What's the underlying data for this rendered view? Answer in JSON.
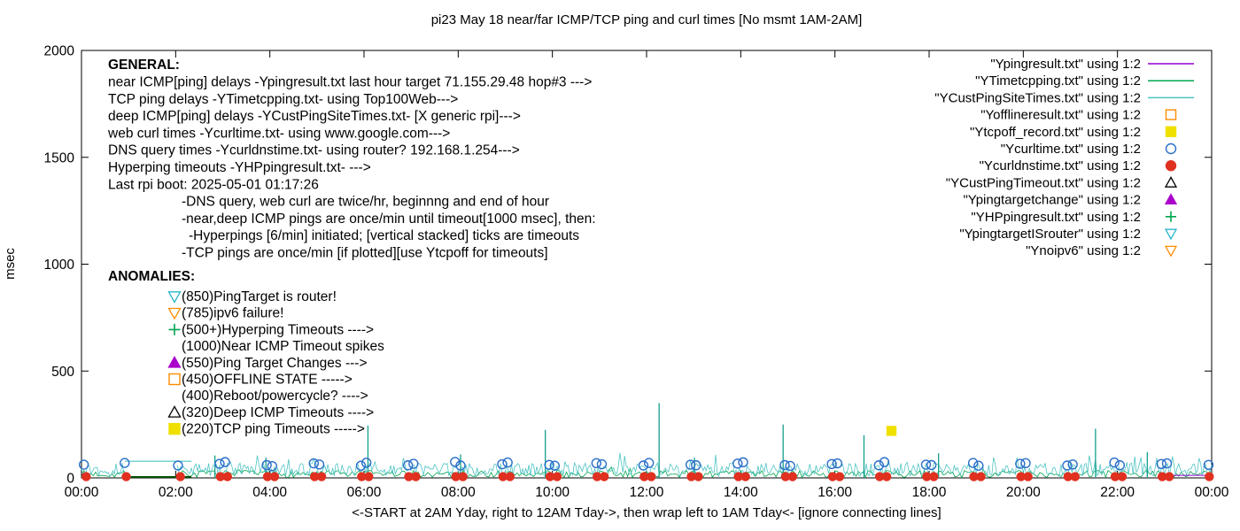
{
  "chart_data": {
    "type": "line",
    "title": "pi23 May 18  near/far ICMP/TCP ping and curl times [No msmt 1AM-2AM]",
    "xlabel": "<-START at 2AM Yday, right to 12AM Tday->, then wrap left to 1AM Tday<- [ignore connecting lines]",
    "ylabel": "msec",
    "ylim": [
      0,
      2000
    ],
    "yticks": [
      0,
      500,
      1000,
      1500,
      2000
    ],
    "x_range_minutes": [
      0,
      1440
    ],
    "xticks_minutes": [
      0,
      120,
      240,
      360,
      480,
      600,
      720,
      840,
      960,
      1080,
      1200,
      1320,
      1440
    ],
    "xtick_labels": [
      "00:00",
      "02:00",
      "04:00",
      "06:00",
      "08:00",
      "10:00",
      "12:00",
      "14:00",
      "16:00",
      "18:00",
      "20:00",
      "22:00",
      "00:00"
    ],
    "no_measurement_gap_minutes": [
      60,
      122
    ],
    "legend_position": "top-right",
    "grid": false,
    "legend": [
      {
        "label": "\"Ypingresult.txt\" using 1:2",
        "sample": "line",
        "color": "#9400d3",
        "fill": false
      },
      {
        "label": "\"YTimetcpping.txt\" using 1:2",
        "sample": "line",
        "color": "#00a550",
        "fill": false
      },
      {
        "label": "\"YCustPingSiteTimes.txt\" using 1:2",
        "sample": "line",
        "color": "#4fc3c3",
        "fill": false
      },
      {
        "label": "\"Yofflineresult.txt\" using 1:2",
        "sample": "square",
        "color": "#ff8c00",
        "fill": false
      },
      {
        "label": "\"Ytcpoff_record.txt\" using 1:2",
        "sample": "square",
        "color": "#f0e000",
        "fill": true
      },
      {
        "label": "\"Ycurltime.txt\" using 1:2",
        "sample": "circle",
        "color": "#2a6fc9",
        "fill": false
      },
      {
        "label": "\"Ycurldnstime.txt\" using 1:2",
        "sample": "circle",
        "color": "#e03020",
        "fill": true
      },
      {
        "label": "\"YCustPingTimeout.txt\" using 1:2",
        "sample": "tri-up",
        "color": "#000000",
        "fill": false
      },
      {
        "label": "\"Ypingtargetchange\" using 1:2",
        "sample": "tri-up",
        "color": "#aa00cc",
        "fill": true
      },
      {
        "label": "\"YHPpingresult.txt\" using 1:2",
        "sample": "plus",
        "color": "#00a550",
        "fill": false
      },
      {
        "label": "\"YpingtargetISrouter\" using 1:2",
        "sample": "tri-down",
        "color": "#29b6c8",
        "fill": false
      },
      {
        "label": "\"Ynoipv6\" using 1:2",
        "sample": "tri-down",
        "color": "#ff8c00",
        "fill": false
      }
    ],
    "annotations": {
      "general": {
        "heading": "GENERAL:",
        "lines": [
          {
            "text": "near ICMP[ping] delays -Ypingresult.txt last hour target 71.155.29.48 hop#3 --->",
            "indent": 0
          },
          {
            "text": "TCP ping delays -YTimetcpping.txt- using Top100Web--->",
            "indent": 0
          },
          {
            "text": "deep ICMP[ping] delays -YCustPingSiteTimes.txt- [X generic rpi]--->",
            "indent": 0
          },
          {
            "text": "web curl times -Ycurltime.txt- using www.google.com--->",
            "indent": 0
          },
          {
            "text": "DNS query times -Ycurldnstime.txt- using router? 192.168.1.254--->",
            "indent": 0
          },
          {
            "text": "Hyperping timeouts -YHPpingresult.txt- --->",
            "indent": 0
          },
          {
            "text": "Last rpi boot: 2025-05-01 01:17:26",
            "indent": 0
          },
          {
            "text": "-DNS query, web curl are twice/hr, beginnng and end of hour",
            "indent": 1
          },
          {
            "text": "-near,deep ICMP pings are once/min until timeout[1000 msec], then:",
            "indent": 1
          },
          {
            "text": "-Hyperpings [6/min] initiated; [vertical stacked] ticks are timeouts",
            "indent": 2
          },
          {
            "text": "-TCP pings are once/min [if plotted][use Ytcpoff for timeouts]",
            "indent": 1
          }
        ]
      },
      "anomalies": {
        "heading": "ANOMALIES:",
        "items": [
          {
            "marker": "tri-down",
            "color": "#29b6c8",
            "fill": false,
            "text": "(850)PingTarget is router!"
          },
          {
            "marker": "tri-down",
            "color": "#ff8c00",
            "fill": false,
            "text": "(785)ipv6 failure!"
          },
          {
            "marker": "plus",
            "color": "#00a550",
            "fill": false,
            "text": "(500+)Hyperping Timeouts ---->"
          },
          {
            "marker": "none",
            "color": "#000000",
            "fill": false,
            "text": "(1000)Near ICMP Timeout spikes"
          },
          {
            "marker": "tri-up",
            "color": "#aa00cc",
            "fill": true,
            "text": "(550)Ping Target Changes --->"
          },
          {
            "marker": "square",
            "color": "#ff8c00",
            "fill": false,
            "text": "(450)OFFLINE STATE ----->"
          },
          {
            "marker": "none",
            "color": "#000000",
            "fill": false,
            "text": "(400)Reboot/powercycle? ---->"
          },
          {
            "marker": "tri-up",
            "color": "#000000",
            "fill": false,
            "text": "(320)Deep ICMP Timeouts ---->"
          },
          {
            "marker": "square",
            "color": "#f0e000",
            "fill": true,
            "text": "(220)TCP ping Timeouts ----->"
          }
        ]
      }
    },
    "series": {
      "deep_icmp_noise": {
        "name": "YCustPingSiteTimes.txt",
        "color": "#4fc3c3",
        "band_msec": [
          8,
          70
        ],
        "spike_chance": 0.07,
        "spike_extra_msec": 60,
        "step_minutes": 2,
        "seed": 13
      },
      "tcp_ping_noise": {
        "name": "YTimetcpping.txt",
        "color": "#00a550",
        "band_msec": [
          2,
          35
        ],
        "spike_chance": 0.05,
        "spike_extra_msec": 25,
        "step_minutes": 3,
        "seed": 7
      },
      "near_icmp_lasthour": {
        "name": "Ypingresult.txt",
        "color": "#9400d3",
        "segment_minutes": [
          1380,
          1440
        ],
        "y_msec": 12
      },
      "hyperping_spikes": {
        "name": "YHPpingresult.txt",
        "color": "#14a08e",
        "points": [
          [
            170,
            105
          ],
          [
            235,
            95
          ],
          [
            365,
            245
          ],
          [
            483,
            110
          ],
          [
            591,
            225
          ],
          [
            736,
            350
          ],
          [
            781,
            95
          ],
          [
            894,
            250
          ],
          [
            997,
            200
          ],
          [
            1092,
            115
          ],
          [
            1292,
            230
          ],
          [
            1358,
            120
          ]
        ]
      },
      "curl_times": {
        "name": "Ycurltime.txt",
        "color": "#2a6fc9",
        "points": [
          [
            3,
            62
          ],
          [
            55,
            70
          ],
          [
            123,
            58
          ],
          [
            176,
            66
          ],
          [
            183,
            74
          ],
          [
            236,
            60
          ],
          [
            243,
            55
          ],
          [
            296,
            68
          ],
          [
            303,
            63
          ],
          [
            356,
            57
          ],
          [
            363,
            71
          ],
          [
            416,
            59
          ],
          [
            423,
            66
          ],
          [
            476,
            75
          ],
          [
            483,
            58
          ],
          [
            536,
            64
          ],
          [
            543,
            72
          ],
          [
            596,
            61
          ],
          [
            603,
            57
          ],
          [
            656,
            69
          ],
          [
            663,
            64
          ],
          [
            716,
            58
          ],
          [
            723,
            70
          ],
          [
            776,
            62
          ],
          [
            783,
            59
          ],
          [
            836,
            67
          ],
          [
            843,
            73
          ],
          [
            896,
            60
          ],
          [
            903,
            56
          ],
          [
            956,
            65
          ],
          [
            963,
            68
          ],
          [
            1016,
            59
          ],
          [
            1023,
            74
          ],
          [
            1076,
            62
          ],
          [
            1083,
            60
          ],
          [
            1136,
            70
          ],
          [
            1143,
            57
          ],
          [
            1196,
            66
          ],
          [
            1203,
            69
          ],
          [
            1256,
            58
          ],
          [
            1263,
            63
          ],
          [
            1316,
            72
          ],
          [
            1323,
            59
          ],
          [
            1376,
            65
          ],
          [
            1383,
            68
          ],
          [
            1436,
            61
          ]
        ]
      },
      "dns_times": {
        "name": "Ycurldnstime.txt",
        "color": "#e03020",
        "y_msec": 6,
        "minutes": [
          6,
          57,
          126,
          177,
          186,
          237,
          246,
          297,
          306,
          357,
          366,
          417,
          426,
          477,
          486,
          537,
          546,
          597,
          606,
          657,
          666,
          717,
          726,
          777,
          786,
          837,
          846,
          897,
          906,
          957,
          966,
          1017,
          1026,
          1077,
          1086,
          1137,
          1146,
          1197,
          1206,
          1257,
          1266,
          1317,
          1326,
          1377,
          1386,
          1437
        ]
      },
      "tcp_timeout_marks": {
        "name": "Ytcpoff_record.txt",
        "color": "#f0e000",
        "points": [
          [
            1032,
            220
          ]
        ]
      },
      "connecting_artifacts": [
        {
          "color": "#4fc3c3",
          "from_minute": 55,
          "to_minute": 140,
          "y_msec": 78,
          "width": 1.2
        },
        {
          "color": "#004d00",
          "from_minute": 58,
          "to_minute": 140,
          "y_msec": 4,
          "width": 2
        }
      ]
    }
  }
}
